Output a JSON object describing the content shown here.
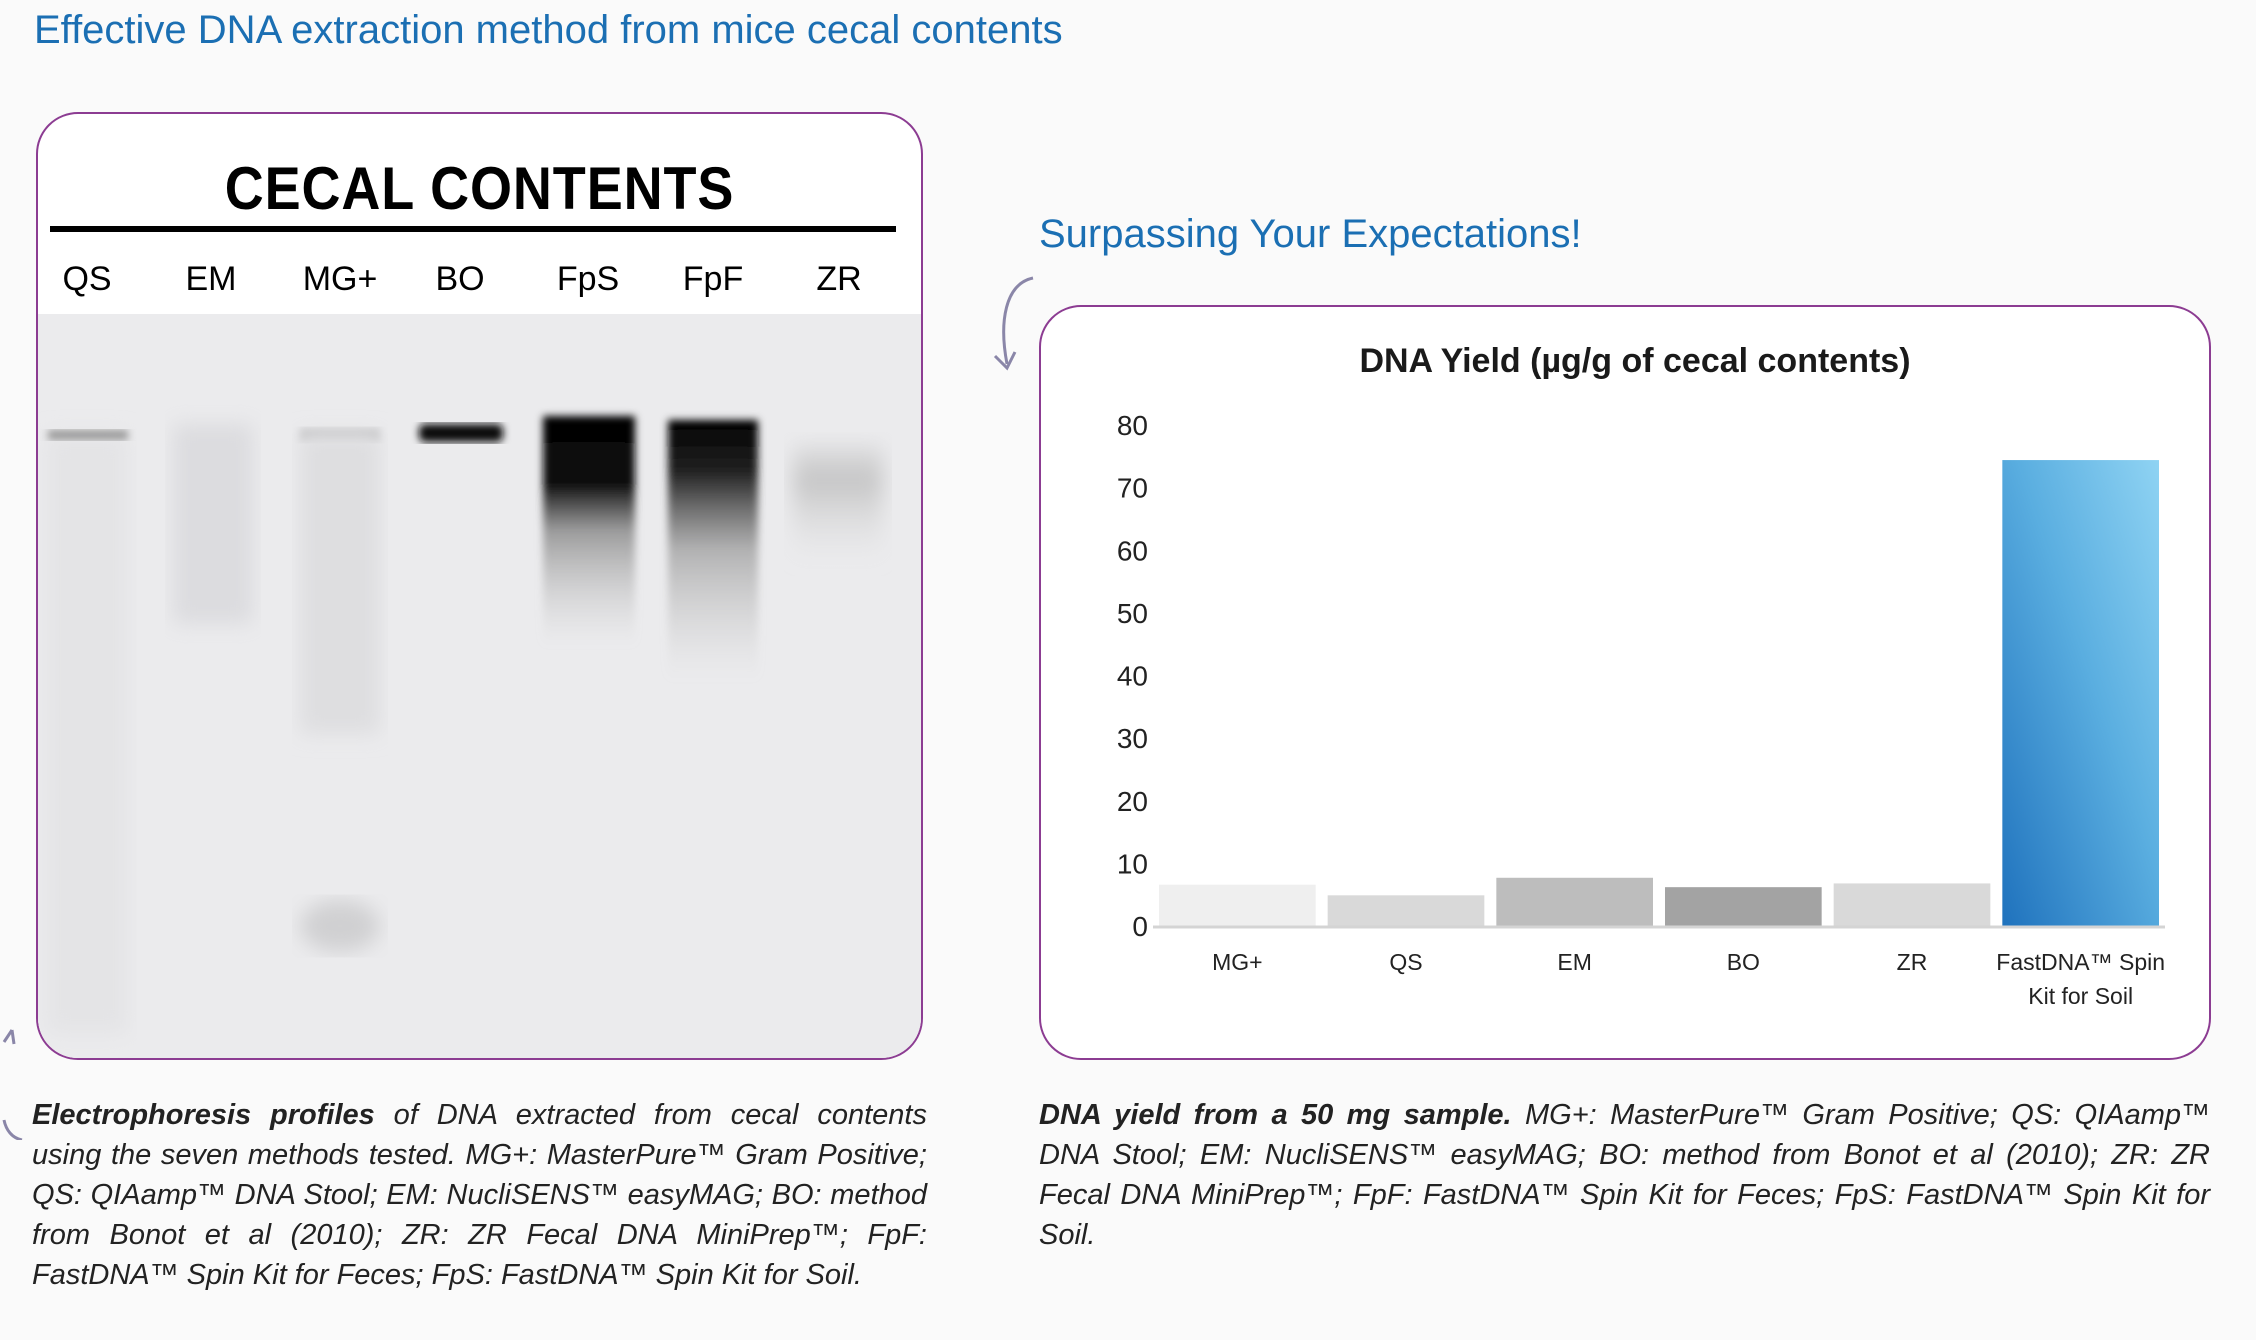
{
  "page_title": "Effective DNA extraction method from mice cecal contents",
  "gel": {
    "title": "CECAL CONTENTS",
    "lanes": [
      "QS",
      "EM",
      "MG+",
      "BO",
      "FpS",
      "FpF",
      "ZR"
    ]
  },
  "chart_heading": "Surpassing Your Expectations!",
  "chart_data": {
    "type": "bar",
    "title": "DNA Yield (µg/g of cecal contents)",
    "categories": [
      "MG+",
      "QS",
      "EM",
      "BO",
      "ZR",
      "FastDNA™ Spin Kit for Soil"
    ],
    "category_lines": [
      [
        "MG+"
      ],
      [
        "QS"
      ],
      [
        "EM"
      ],
      [
        "BO"
      ],
      [
        "ZR"
      ],
      [
        "FastDNA™ Spin",
        "Kit for Soil"
      ]
    ],
    "values": [
      6.6,
      4.9,
      7.7,
      6.2,
      6.8,
      74.4
    ],
    "colors": [
      "#efefef",
      "#d9d9d9",
      "#bdbdbd",
      "#a3a3a3",
      "#d9d9d9",
      "gradient-blue"
    ],
    "highlight_color": "#1f72bd",
    "ylim": [
      0,
      80
    ],
    "yticks": [
      0,
      10,
      20,
      30,
      40,
      50,
      60,
      70,
      80
    ],
    "xlabel": "",
    "ylabel": "",
    "grid": false
  },
  "captions": {
    "left_bold": "Electrophoresis profiles",
    "left_text": " of DNA extracted from cecal contents using the seven methods tested. MG+:  MasterPure™ Gram Positive; QS: QIAamp™ DNA Stool; EM: NucliSENS™ easyMAG; BO: method from Bonot et al (2010); ZR: ZR Fecal DNA MiniPrep™; FpF: FastDNA™ Spin Kit for Feces; FpS: FastDNA™ Spin Kit for Soil.",
    "right_bold": "DNA yield from a 50 mg sample.",
    "right_text": " MG+:  MasterPure™ Gram Positive; QS: QIAamp™ DNA Stool; EM: NucliSENS™ easyMAG; BO: method from Bonot et al (2010); ZR: ZR Fecal DNA MiniPrep™; FpF: FastDNA™ Spin Kit for Feces; FpS: FastDNA™ Spin Kit for Soil."
  }
}
